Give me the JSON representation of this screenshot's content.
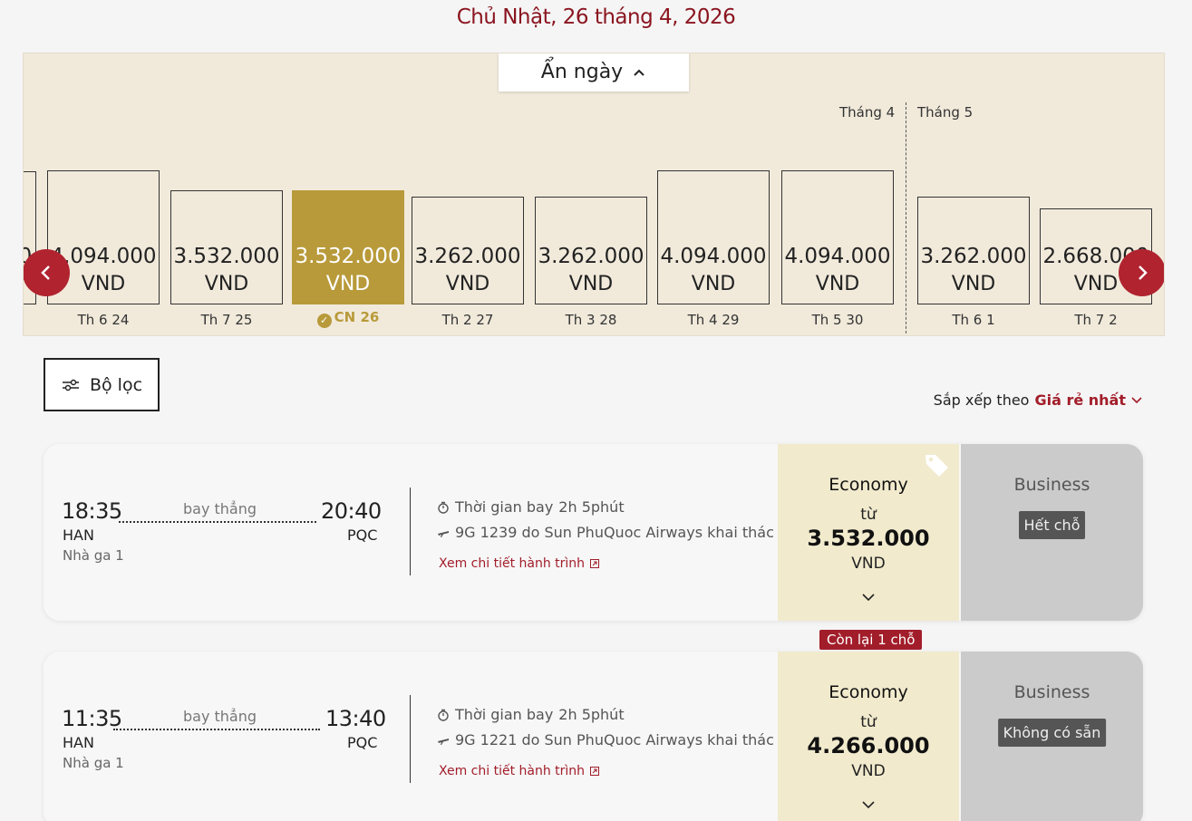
{
  "header": {
    "date_title": "Chủ Nhật, 26 tháng 4, 2026"
  },
  "calendar": {
    "hide_dates_label": "Ẩn ngày",
    "month_april": "Tháng 4",
    "month_may": "Tháng 5",
    "partial_left_price": "0",
    "days": [
      {
        "price": "4.094.000",
        "currency": "VND",
        "label": "Th 6 24",
        "level": 0.82,
        "selected": false
      },
      {
        "price": "3.532.000",
        "currency": "VND",
        "label": "Th 7 25",
        "level": 0.7,
        "selected": false
      },
      {
        "price": "3.532.000",
        "currency": "VND",
        "label": "CN 26",
        "level": 0.7,
        "selected": true
      },
      {
        "price": "3.262.000",
        "currency": "VND",
        "label": "Th 2 27",
        "level": 0.66,
        "selected": false
      },
      {
        "price": "3.262.000",
        "currency": "VND",
        "label": "Th 3 28",
        "level": 0.66,
        "selected": false
      },
      {
        "price": "4.094.000",
        "currency": "VND",
        "label": "Th 4 29",
        "level": 0.82,
        "selected": false
      },
      {
        "price": "4.094.000",
        "currency": "VND",
        "label": "Th 5 30",
        "level": 0.82,
        "selected": false
      },
      {
        "price": "3.262.000",
        "currency": "VND",
        "label": "Th 6 1",
        "level": 0.66,
        "selected": false
      },
      {
        "price": "2.668.000",
        "currency": "VND",
        "label": "Th 7 2",
        "level": 0.59,
        "selected": false
      }
    ]
  },
  "toolbar": {
    "filter_label": "Bộ lọc",
    "sort_prefix": "Sắp xếp theo",
    "sort_value": "Giá rẻ nhất"
  },
  "flights": [
    {
      "depart_time": "18:35",
      "arrive_time": "20:40",
      "nonstop": "bay thẳng",
      "origin": "HAN",
      "destination": "PQC",
      "terminal": "Nhà ga 1",
      "duration_label": "Thời gian bay",
      "duration": "2h 5phút",
      "operated_by": "9G 1239 do Sun PhuQuoc Airways khai thác",
      "detail_link": "Xem chi tiết hành trình",
      "economy": {
        "name": "Economy",
        "from": "từ",
        "price": "3.532.000",
        "currency": "VND"
      },
      "business": {
        "name": "Business",
        "status": "Hết chỗ"
      }
    },
    {
      "depart_time": "11:35",
      "arrive_time": "13:40",
      "nonstop": "bay thẳng",
      "origin": "HAN",
      "destination": "PQC",
      "terminal": "Nhà ga 1",
      "duration_label": "Thời gian bay",
      "duration": "2h 5phút",
      "operated_by": "9G 1221 do Sun PhuQuoc Airways khai thác",
      "detail_link": "Xem chi tiết hành trình",
      "seats_left": "Còn lại 1 chỗ",
      "economy": {
        "name": "Economy",
        "from": "từ",
        "price": "4.266.000",
        "currency": "VND"
      },
      "business": {
        "name": "Business",
        "status": "Không có sẵn"
      }
    }
  ],
  "colors": {
    "brand_red": "#a21d2a",
    "selected_gold": "#b89a3a",
    "calendar_bg": "#f1eadb",
    "economy_bg": "#f1eacd",
    "business_bg": "#cbcbcb"
  }
}
